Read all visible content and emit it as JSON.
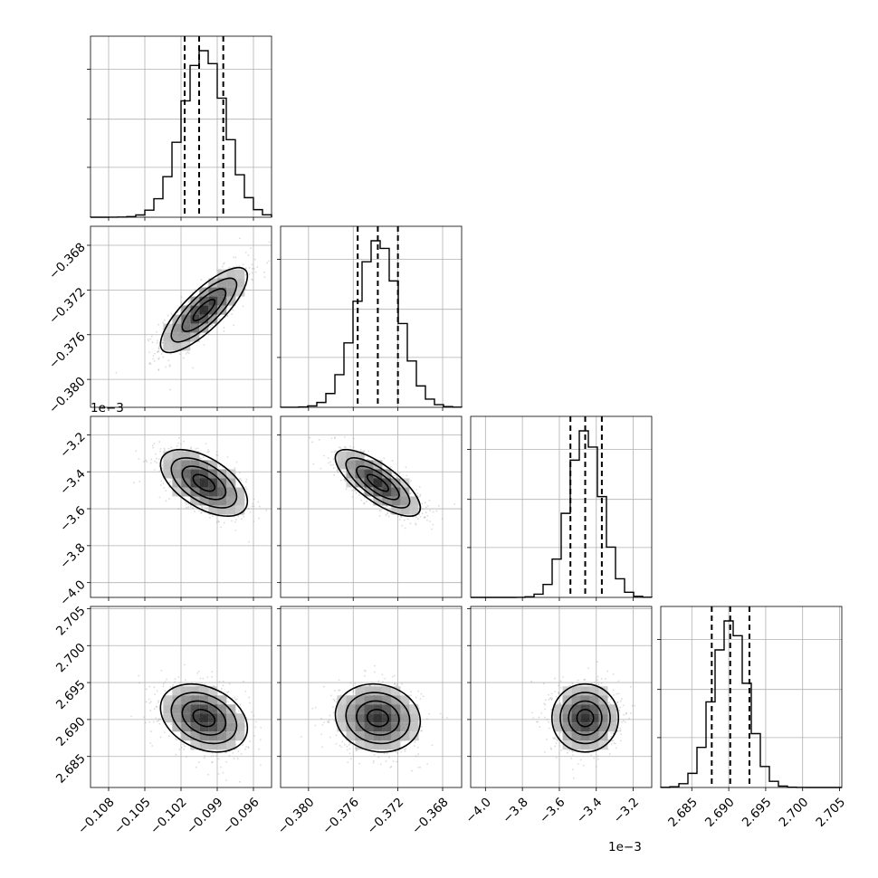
{
  "chart_data": {
    "type": "corner",
    "parameters": [
      {
        "key": "p0",
        "range": [
          -0.1095,
          -0.0945
        ],
        "ticks": [
          -0.108,
          -0.105,
          -0.102,
          -0.099,
          -0.096
        ],
        "tick_labels": [
          "−0.108",
          "−0.105",
          "−0.102",
          "−0.099",
          "−0.096"
        ],
        "offset": "",
        "mean": -0.1001,
        "std": 0.0018,
        "quantiles": [
          -0.1017,
          -0.1005,
          -0.0985
        ]
      },
      {
        "key": "p1",
        "range": [
          -0.3825,
          -0.3663
        ],
        "ticks": [
          -0.38,
          -0.376,
          -0.372,
          -0.368
        ],
        "tick_labels": [
          "−0.380",
          "−0.376",
          "−0.372",
          "−0.368"
        ],
        "offset": "",
        "mean": -0.3738,
        "std": 0.0019,
        "quantiles": [
          -0.3756,
          -0.3738,
          -0.372
        ]
      },
      {
        "key": "p2",
        "range": [
          -4.08,
          -3.1
        ],
        "ticks": [
          -4.0,
          -3.8,
          -3.6,
          -3.4,
          -3.2
        ],
        "tick_labels": [
          "−4.0",
          "−3.8",
          "−3.6",
          "−3.4",
          "−3.2"
        ],
        "offset": "1e−3",
        "mean": -3.46,
        "std": 0.09,
        "quantiles": [
          -3.54,
          -3.46,
          -3.37
        ]
      },
      {
        "key": "p3",
        "range": [
          2.6808,
          2.7053
        ],
        "ticks": [
          2.685,
          2.69,
          2.695,
          2.7,
          2.705
        ],
        "tick_labels": [
          "2.685",
          "2.690",
          "2.695",
          "2.700",
          "2.705"
        ],
        "offset": "",
        "mean": 2.6902,
        "std": 0.0023,
        "quantiles": [
          2.6877,
          2.6902,
          2.6928
        ]
      }
    ],
    "correlations": [
      {
        "pair": [
          0,
          1
        ],
        "rho": 0.8
      },
      {
        "pair": [
          0,
          2
        ],
        "rho": -0.55
      },
      {
        "pair": [
          1,
          2
        ],
        "rho": -0.75
      },
      {
        "pair": [
          0,
          3
        ],
        "rho": -0.3
      },
      {
        "pair": [
          1,
          3
        ],
        "rho": -0.1
      },
      {
        "pair": [
          2,
          3
        ],
        "rho": 0.0
      }
    ],
    "hist_bins": 20,
    "contour_levels_sigma": [
      0.5,
      1.0,
      1.5,
      2.0
    ],
    "grid": true,
    "title": "",
    "legend": ""
  }
}
